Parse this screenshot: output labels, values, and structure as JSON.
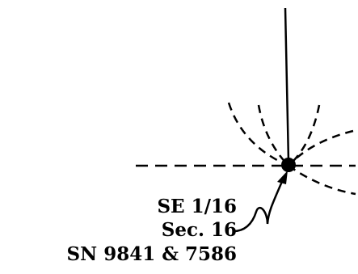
{
  "diagram": {
    "labels": {
      "line1": "SE 1/16",
      "line2": "Sec. 16",
      "line3": "SN 9841 & 7586"
    },
    "colors": {
      "ink": "#000000",
      "background": "#ffffff"
    }
  }
}
